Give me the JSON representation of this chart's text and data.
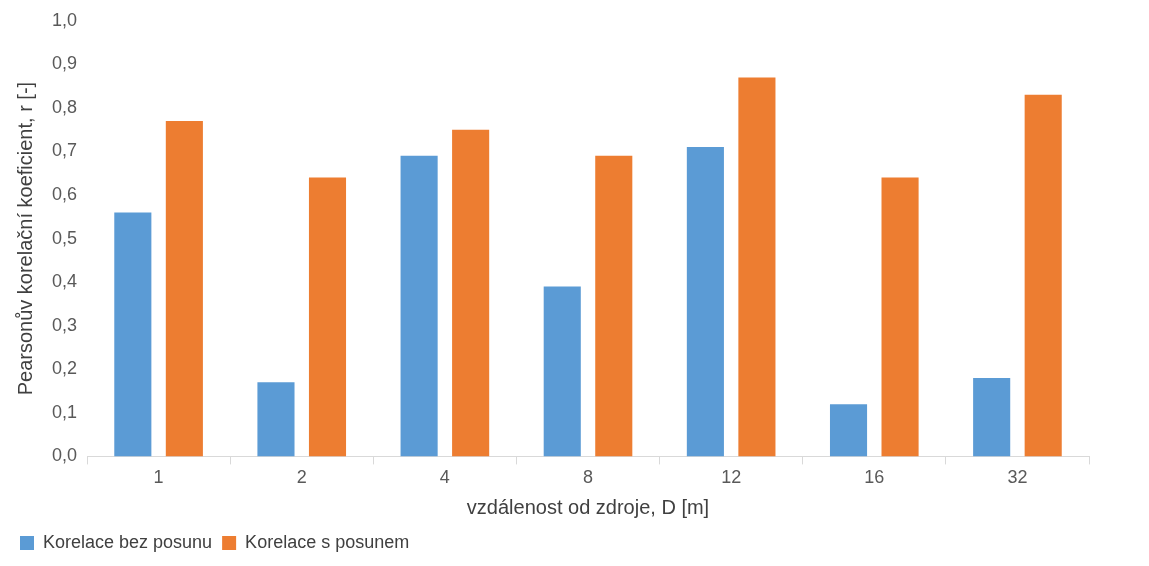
{
  "chart_data": {
    "type": "bar",
    "xlabel": "vzdálenost od zdroje, D [m]",
    "ylabel": "Pearsonův korelační koeficient, r [-]",
    "categories": [
      "1",
      "2",
      "4",
      "8",
      "12",
      "16",
      "32"
    ],
    "series": [
      {
        "name": "Korelace bez posunu",
        "color": "#5b9bd5",
        "values": [
          0.56,
          0.17,
          0.69,
          0.39,
          0.71,
          0.12,
          0.18
        ]
      },
      {
        "name": "Korelace s posunem",
        "color": "#ed7d31",
        "values": [
          0.77,
          0.64,
          0.75,
          0.69,
          0.87,
          0.64,
          0.83
        ]
      }
    ],
    "ylim": [
      0,
      1
    ],
    "yticks": [
      {
        "value": 0,
        "label": "0,0"
      },
      {
        "value": 0.1,
        "label": "0,1"
      },
      {
        "value": 0.2,
        "label": "0,2"
      },
      {
        "value": 0.3,
        "label": "0,3"
      },
      {
        "value": 0.4,
        "label": "0,4"
      },
      {
        "value": 0.5,
        "label": "0,5"
      },
      {
        "value": 0.6,
        "label": "0,6"
      },
      {
        "value": 0.7,
        "label": "0,7"
      },
      {
        "value": 0.8,
        "label": "0,8"
      },
      {
        "value": 0.9,
        "label": "0,9"
      },
      {
        "value": 1,
        "label": "1,0"
      }
    ],
    "grid": false,
    "legend": "bottom left"
  }
}
